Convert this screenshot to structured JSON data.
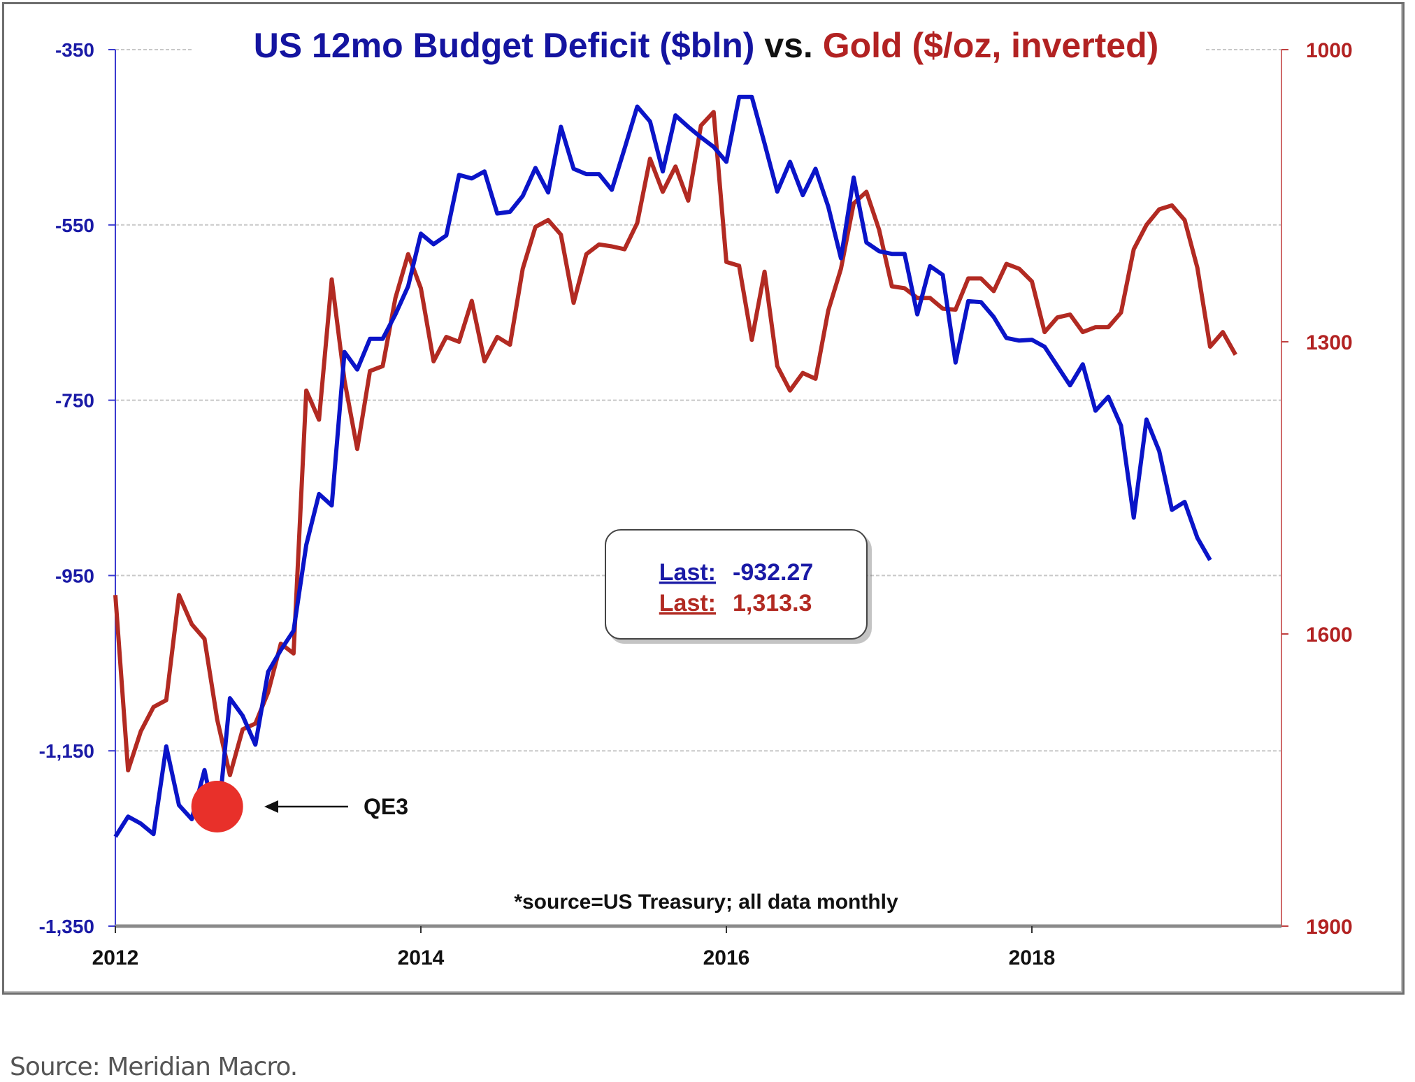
{
  "chart_data": {
    "type": "line",
    "title": {
      "part1": "US 12mo Budget Deficit ($bln)",
      "part2": " vs. ",
      "part3": "Gold ($/oz, inverted)"
    },
    "xlabel": "",
    "x_ticks": [
      "2012",
      "2014",
      "2016",
      "2018"
    ],
    "x_range": [
      2012.0,
      2019.65
    ],
    "frequency": "monthly",
    "start": "2012-01",
    "end": "2019-03",
    "left_axis": {
      "label": "US 12mo Budget Deficit ($bln)",
      "ticks": [
        -350,
        -550,
        -750,
        -950,
        -1150,
        -1350
      ],
      "tick_labels": [
        "-350",
        "-550",
        "-750",
        "-950",
        "-1,150",
        "-1,350"
      ],
      "ylim": [
        -1350,
        -350
      ]
    },
    "right_axis": {
      "label": "Gold ($/oz, inverted)",
      "inverted": true,
      "ticks": [
        1000,
        1300,
        1600,
        1900
      ],
      "tick_labels": [
        "1000",
        "1300",
        "1600",
        "1900"
      ],
      "ylim": [
        1000,
        1900
      ]
    },
    "grid": true,
    "series": [
      {
        "name": "US 12mo Budget Deficit ($bln)",
        "axis": "left",
        "color": "#0a14c8",
        "values": [
          -1248,
          -1225,
          -1233,
          -1245,
          -1145,
          -1212,
          -1228,
          -1172,
          -1240,
          -1090,
          -1110,
          -1143,
          -1060,
          -1035,
          -1013,
          -915,
          -857,
          -870,
          -695,
          -715,
          -680,
          -680,
          -652,
          -620,
          -560,
          -572,
          -562,
          -493,
          -497,
          -489,
          -537,
          -535,
          -517,
          -485,
          -513,
          -438,
          -486,
          -492,
          -492,
          -510,
          -463,
          -415,
          -432,
          -489,
          -425,
          -438,
          -450,
          -461,
          -478,
          -404,
          -404,
          -457,
          -512,
          -478,
          -516,
          -486,
          -529,
          -588,
          -496,
          -570,
          -580,
          -583,
          -583,
          -652,
          -597,
          -607,
          -707,
          -637,
          -638,
          -655,
          -679,
          -682,
          -681,
          -689,
          -711,
          -733,
          -709,
          -762,
          -746,
          -779,
          -884,
          -772,
          -808,
          -875,
          -866,
          -907,
          -932.27
        ]
      },
      {
        "name": "Gold ($/oz, inverted)",
        "axis": "right",
        "color": "#b22a22",
        "values": [
          1560,
          1740,
          1700,
          1675,
          1668,
          1560,
          1590,
          1605,
          1688,
          1745,
          1698,
          1692,
          1660,
          1610,
          1620,
          1350,
          1380,
          1236,
          1340,
          1410,
          1330,
          1325,
          1255,
          1210,
          1245,
          1320,
          1295,
          1300,
          1258,
          1320,
          1295,
          1303,
          1225,
          1182,
          1175,
          1190,
          1260,
          1210,
          1200,
          1202,
          1205,
          1178,
          1112,
          1146,
          1120,
          1155,
          1078,
          1064,
          1218,
          1222,
          1298,
          1228,
          1325,
          1350,
          1332,
          1338,
          1268,
          1225,
          1158,
          1146,
          1185,
          1243,
          1245,
          1255,
          1255,
          1266,
          1267,
          1235,
          1235,
          1248,
          1220,
          1225,
          1238,
          1290,
          1275,
          1272,
          1290,
          1285,
          1285,
          1270,
          1205,
          1180,
          1164,
          1160,
          1175,
          1224,
          1305,
          1290,
          1313.3
        ]
      }
    ],
    "annotations": [
      {
        "type": "marker",
        "label": "QE3",
        "date": "2012-09",
        "color": "#e8302a"
      },
      {
        "type": "note",
        "text": "*source=US Treasury; all data monthly"
      }
    ],
    "legend": {
      "placement": "center",
      "entries": [
        {
          "label": "Last:",
          "value": "-932.27",
          "color": "#1a1aa6"
        },
        {
          "label": "Last:",
          "value": "1,313.3",
          "color": "#b22a22"
        }
      ]
    }
  },
  "footer": {
    "caption": "Source: Meridian Macro."
  }
}
